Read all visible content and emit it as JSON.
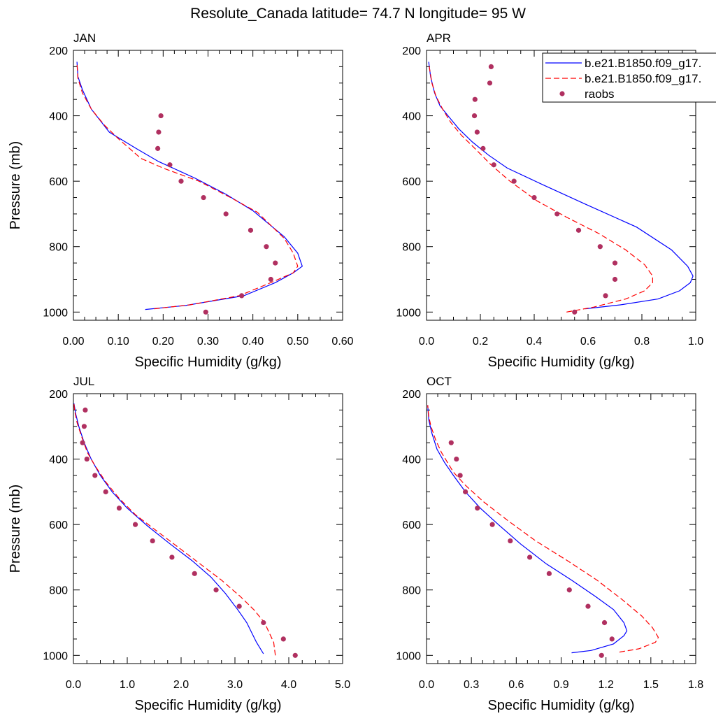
{
  "figure": {
    "title": "Resolute_Canada  latitude= 74.7 N longitude= 95 W"
  },
  "legend": {
    "position": "top-right of APR panel",
    "entries": [
      {
        "label": "b.e21.B1850.f09_g17.",
        "style": "solid-line",
        "color": "#0000ff"
      },
      {
        "label": "b.e21.B1850.f09_g17.",
        "style": "dashed-line",
        "color": "#ff0000"
      },
      {
        "label": "raobs",
        "style": "marker",
        "color": "#b03060"
      }
    ]
  },
  "chart_data": [
    {
      "type": "line",
      "panel_label": "JAN",
      "xlabel": "Specific Humidity (g/kg)",
      "ylabel": "Pressure (mb)",
      "xlim": [
        0,
        0.6
      ],
      "ylim": [
        1025,
        200
      ],
      "y_reversed": true,
      "xticks": [
        "0.00",
        "0.10",
        "0.20",
        "0.30",
        "0.40",
        "0.50",
        "0.60"
      ],
      "xtick_values": [
        0,
        0.1,
        0.2,
        0.3,
        0.4,
        0.5,
        0.6
      ],
      "yticks": [
        "200",
        "400",
        "600",
        "800",
        "1000"
      ],
      "ytick_values": [
        200,
        400,
        600,
        800,
        1000
      ],
      "series": [
        {
          "color": "#0000ff",
          "dash": "solid",
          "points": [
            [
              0.16,
              992
            ],
            [
              0.25,
              980
            ],
            [
              0.38,
              950
            ],
            [
              0.45,
              910
            ],
            [
              0.49,
              880
            ],
            [
              0.51,
              860
            ],
            [
              0.5,
              820
            ],
            [
              0.47,
              770
            ],
            [
              0.4,
              690
            ],
            [
              0.34,
              640
            ],
            [
              0.27,
              590
            ],
            [
              0.19,
              540
            ],
            [
              0.14,
              500
            ],
            [
              0.08,
              450
            ],
            [
              0.04,
              380
            ],
            [
              0.02,
              320
            ],
            [
              0.01,
              280
            ],
            [
              0.008,
              235
            ]
          ]
        },
        {
          "color": "#ff0000",
          "dash": "dashed",
          "points": [
            [
              0.18,
              990
            ],
            [
              0.26,
              978
            ],
            [
              0.37,
              950
            ],
            [
              0.44,
              910
            ],
            [
              0.49,
              880
            ],
            [
              0.5,
              860
            ],
            [
              0.49,
              820
            ],
            [
              0.47,
              775
            ],
            [
              0.41,
              695
            ],
            [
              0.35,
              650
            ],
            [
              0.28,
              600
            ],
            [
              0.2,
              560
            ],
            [
              0.15,
              530
            ],
            [
              0.1,
              470
            ],
            [
              0.07,
              430
            ],
            [
              0.04,
              380
            ],
            [
              0.02,
              330
            ],
            [
              0.01,
              285
            ],
            [
              0.008,
              240
            ]
          ]
        }
      ],
      "markers": {
        "color": "#b03060",
        "points": [
          [
            0.195,
            400
          ],
          [
            0.19,
            450
          ],
          [
            0.188,
            500
          ],
          [
            0.215,
            550
          ],
          [
            0.24,
            600
          ],
          [
            0.29,
            650
          ],
          [
            0.34,
            700
          ],
          [
            0.395,
            750
          ],
          [
            0.43,
            800
          ],
          [
            0.45,
            850
          ],
          [
            0.44,
            900
          ],
          [
            0.375,
            950
          ],
          [
            0.295,
            1000
          ]
        ]
      }
    },
    {
      "type": "line",
      "panel_label": "APR",
      "xlabel": "Specific Humidity (g/kg)",
      "ylabel": "",
      "xlim": [
        0,
        1.0
      ],
      "ylim": [
        1025,
        200
      ],
      "y_reversed": true,
      "xticks": [
        "0.0",
        "0.2",
        "0.4",
        "0.6",
        "0.8",
        "1.0"
      ],
      "xtick_values": [
        0,
        0.2,
        0.4,
        0.6,
        0.8,
        1.0
      ],
      "yticks": [
        "200",
        "400",
        "600",
        "800",
        "1000"
      ],
      "ytick_values": [
        200,
        400,
        600,
        800,
        1000
      ],
      "series": [
        {
          "color": "#0000ff",
          "dash": "solid",
          "points": [
            [
              0.59,
              990
            ],
            [
              0.72,
              978
            ],
            [
              0.86,
              960
            ],
            [
              0.94,
              935
            ],
            [
              0.98,
              910
            ],
            [
              0.99,
              890
            ],
            [
              0.97,
              860
            ],
            [
              0.91,
              810
            ],
            [
              0.78,
              740
            ],
            [
              0.59,
              670
            ],
            [
              0.43,
              610
            ],
            [
              0.3,
              560
            ],
            [
              0.23,
              520
            ],
            [
              0.17,
              480
            ],
            [
              0.12,
              440
            ],
            [
              0.08,
              400
            ],
            [
              0.05,
              370
            ],
            [
              0.03,
              330
            ],
            [
              0.015,
              280
            ],
            [
              0.008,
              235
            ]
          ]
        },
        {
          "color": "#ff0000",
          "dash": "dashed",
          "points": [
            [
              0.52,
              1000
            ],
            [
              0.62,
              985
            ],
            [
              0.74,
              960
            ],
            [
              0.81,
              935
            ],
            [
              0.84,
              910
            ],
            [
              0.84,
              890
            ],
            [
              0.81,
              855
            ],
            [
              0.74,
              810
            ],
            [
              0.64,
              760
            ],
            [
              0.52,
              710
            ],
            [
              0.41,
              660
            ],
            [
              0.31,
              600
            ],
            [
              0.24,
              550
            ],
            [
              0.18,
              500
            ],
            [
              0.13,
              460
            ],
            [
              0.09,
              420
            ],
            [
              0.06,
              380
            ],
            [
              0.035,
              340
            ],
            [
              0.02,
              300
            ],
            [
              0.008,
              240
            ]
          ]
        }
      ],
      "markers": {
        "color": "#b03060",
        "points": [
          [
            0.24,
            250
          ],
          [
            0.235,
            300
          ],
          [
            0.18,
            350
          ],
          [
            0.178,
            400
          ],
          [
            0.188,
            450
          ],
          [
            0.21,
            500
          ],
          [
            0.25,
            550
          ],
          [
            0.325,
            600
          ],
          [
            0.4,
            650
          ],
          [
            0.485,
            700
          ],
          [
            0.565,
            750
          ],
          [
            0.645,
            800
          ],
          [
            0.7,
            850
          ],
          [
            0.7,
            900
          ],
          [
            0.665,
            950
          ],
          [
            0.55,
            1000
          ]
        ]
      }
    },
    {
      "type": "line",
      "panel_label": "JUL",
      "xlabel": "Specific Humidity (g/kg)",
      "ylabel": "Pressure (mb)",
      "xlim": [
        0,
        5.0
      ],
      "ylim": [
        1025,
        200
      ],
      "y_reversed": true,
      "xticks": [
        "0.0",
        "1.0",
        "2.0",
        "3.0",
        "4.0",
        "5.0"
      ],
      "xtick_values": [
        0,
        1,
        2,
        3,
        4,
        5
      ],
      "yticks": [
        "200",
        "400",
        "600",
        "800",
        "1000"
      ],
      "ytick_values": [
        200,
        400,
        600,
        800,
        1000
      ],
      "series": [
        {
          "color": "#0000ff",
          "dash": "solid",
          "points": [
            [
              3.53,
              995
            ],
            [
              3.4,
              960
            ],
            [
              3.22,
              900
            ],
            [
              3.05,
              860
            ],
            [
              2.82,
              810
            ],
            [
              2.55,
              760
            ],
            [
              2.2,
              710
            ],
            [
              1.8,
              660
            ],
            [
              1.38,
              605
            ],
            [
              1.0,
              550
            ],
            [
              0.72,
              500
            ],
            [
              0.5,
              450
            ],
            [
              0.33,
              400
            ],
            [
              0.2,
              350
            ],
            [
              0.1,
              300
            ],
            [
              0.04,
              260
            ],
            [
              0.01,
              230
            ]
          ]
        },
        {
          "color": "#ff0000",
          "dash": "dashed",
          "points": [
            [
              3.75,
              1000
            ],
            [
              3.72,
              960
            ],
            [
              3.55,
              900
            ],
            [
              3.35,
              860
            ],
            [
              3.1,
              820
            ],
            [
              2.75,
              770
            ],
            [
              2.35,
              720
            ],
            [
              1.95,
              670
            ],
            [
              1.55,
              620
            ],
            [
              1.15,
              570
            ],
            [
              0.85,
              520
            ],
            [
              0.6,
              470
            ],
            [
              0.4,
              420
            ],
            [
              0.26,
              380
            ],
            [
              0.15,
              330
            ],
            [
              0.07,
              290
            ],
            [
              0.02,
              250
            ],
            [
              0.01,
              230
            ]
          ]
        }
      ],
      "markers": {
        "color": "#b03060",
        "points": [
          [
            0.22,
            250
          ],
          [
            0.2,
            300
          ],
          [
            0.17,
            350
          ],
          [
            0.25,
            400
          ],
          [
            0.4,
            450
          ],
          [
            0.6,
            500
          ],
          [
            0.85,
            550
          ],
          [
            1.15,
            600
          ],
          [
            1.47,
            650
          ],
          [
            1.83,
            700
          ],
          [
            2.25,
            750
          ],
          [
            2.65,
            800
          ],
          [
            3.08,
            850
          ],
          [
            3.53,
            900
          ],
          [
            3.9,
            950
          ],
          [
            4.12,
            1000
          ]
        ]
      }
    },
    {
      "type": "line",
      "panel_label": "OCT",
      "xlabel": "Specific Humidity (g/kg)",
      "ylabel": "",
      "xlim": [
        0,
        1.8
      ],
      "ylim": [
        1025,
        200
      ],
      "y_reversed": true,
      "xticks": [
        "0.0",
        "0.3",
        "0.6",
        "0.9",
        "1.2",
        "1.5",
        "1.8"
      ],
      "xtick_values": [
        0,
        0.3,
        0.6,
        0.9,
        1.2,
        1.5,
        1.8
      ],
      "yticks": [
        "200",
        "400",
        "600",
        "800",
        "1000"
      ],
      "ytick_values": [
        200,
        400,
        600,
        800,
        1000
      ],
      "series": [
        {
          "color": "#0000ff",
          "dash": "solid",
          "points": [
            [
              0.97,
              992
            ],
            [
              1.1,
              985
            ],
            [
              1.25,
              965
            ],
            [
              1.32,
              940
            ],
            [
              1.34,
              925
            ],
            [
              1.32,
              900
            ],
            [
              1.25,
              860
            ],
            [
              1.13,
              820
            ],
            [
              0.97,
              770
            ],
            [
              0.8,
              720
            ],
            [
              0.63,
              660
            ],
            [
              0.48,
              600
            ],
            [
              0.36,
              550
            ],
            [
              0.26,
              500
            ],
            [
              0.18,
              450
            ],
            [
              0.12,
              410
            ],
            [
              0.07,
              370
            ],
            [
              0.035,
              320
            ],
            [
              0.015,
              280
            ],
            [
              0.008,
              235
            ]
          ]
        },
        {
          "color": "#ff0000",
          "dash": "dashed",
          "points": [
            [
              1.29,
              990
            ],
            [
              1.42,
              980
            ],
            [
              1.53,
              960
            ],
            [
              1.55,
              945
            ],
            [
              1.51,
              915
            ],
            [
              1.44,
              880
            ],
            [
              1.31,
              830
            ],
            [
              1.14,
              770
            ],
            [
              0.94,
              710
            ],
            [
              0.73,
              650
            ],
            [
              0.55,
              590
            ],
            [
              0.38,
              530
            ],
            [
              0.26,
              480
            ],
            [
              0.18,
              440
            ],
            [
              0.1,
              380
            ],
            [
              0.06,
              340
            ],
            [
              0.03,
              300
            ],
            [
              0.015,
              270
            ],
            [
              0.008,
              235
            ]
          ]
        }
      ],
      "markers": {
        "color": "#b03060",
        "points": [
          [
            0.165,
            350
          ],
          [
            0.2,
            400
          ],
          [
            0.225,
            450
          ],
          [
            0.26,
            500
          ],
          [
            0.34,
            550
          ],
          [
            0.44,
            600
          ],
          [
            0.56,
            650
          ],
          [
            0.69,
            700
          ],
          [
            0.82,
            750
          ],
          [
            0.955,
            800
          ],
          [
            1.08,
            850
          ],
          [
            1.19,
            900
          ],
          [
            1.24,
            950
          ],
          [
            1.17,
            1000
          ]
        ]
      }
    }
  ]
}
